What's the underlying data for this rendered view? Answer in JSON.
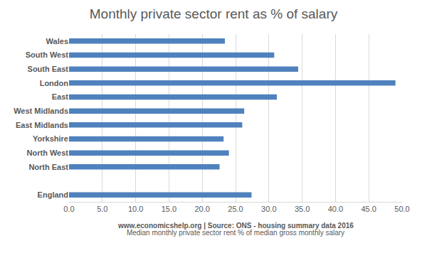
{
  "chart_data": {
    "type": "bar",
    "orientation": "horizontal",
    "title": "Monthly private sector rent as % of salary",
    "x_label": "Median monthly private sector rent % of median gross monthly salary",
    "annotations": [
      "www.economicshelp.org | Source: ONS - housing summary data 2016"
    ],
    "categories": [
      "Wales",
      "South West",
      "South East",
      "London",
      "East",
      "West Midlands",
      "East Midlands",
      "Yorkshire",
      "North West",
      "North East",
      null,
      "England"
    ],
    "values": [
      23.4,
      30.8,
      34.4,
      49.0,
      31.2,
      26.3,
      26.0,
      23.2,
      24.0,
      22.6,
      null,
      27.4
    ],
    "color": "#4f81bd",
    "xlim": [
      0,
      50
    ],
    "xticks": [
      {
        "value": 0,
        "label": "0.0"
      },
      {
        "value": 5,
        "label": "5.0"
      },
      {
        "value": 10,
        "label": "10.0"
      },
      {
        "value": 15,
        "label": "15.0"
      },
      {
        "value": 20,
        "label": "20.0"
      },
      {
        "value": 25,
        "label": "25.0"
      },
      {
        "value": 30,
        "label": "30.0"
      },
      {
        "value": 35,
        "label": "35.0"
      },
      {
        "value": 40,
        "label": "40.0"
      },
      {
        "value": 45,
        "label": "45.0"
      },
      {
        "value": 50,
        "label": "50.0"
      }
    ],
    "grid": true
  }
}
